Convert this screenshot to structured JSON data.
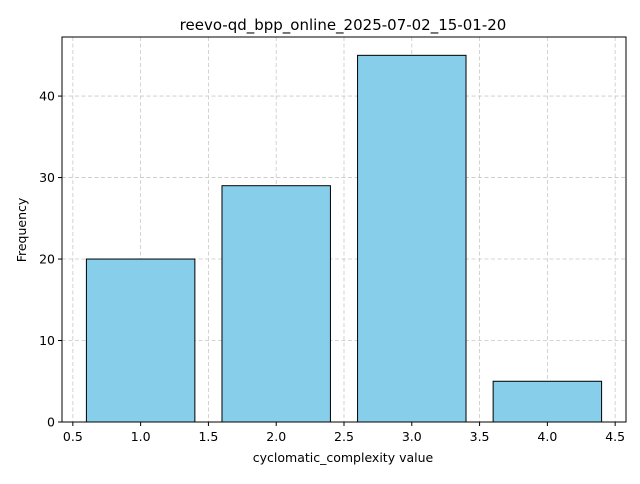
{
  "chart_data": {
    "type": "bar",
    "title": "reevo-qd_bpp_online_2025-07-02_15-01-20",
    "xlabel": "cyclomatic_complexity value",
    "ylabel": "Frequency",
    "bars": [
      {
        "x": 1.0,
        "value": 20,
        "width": 0.8
      },
      {
        "x": 2.0,
        "value": 29,
        "width": 0.8
      },
      {
        "x": 3.0,
        "value": 45,
        "width": 0.8
      },
      {
        "x": 4.0,
        "value": 5,
        "width": 0.8
      }
    ],
    "xlim": [
      0.42,
      4.58
    ],
    "ylim": [
      0,
      47.25
    ],
    "xticks": [
      0.5,
      1.0,
      1.5,
      2.0,
      2.5,
      3.0,
      3.5,
      4.0,
      4.5
    ],
    "xtick_labels": [
      "0.5",
      "1.0",
      "1.5",
      "2.0",
      "2.5",
      "3.0",
      "3.5",
      "4.0",
      "4.5"
    ],
    "yticks": [
      0,
      10,
      20,
      30,
      40
    ],
    "ytick_labels": [
      "0",
      "10",
      "20",
      "30",
      "40"
    ],
    "grid": true,
    "colors": {
      "bar_fill": "#87ceeb",
      "bar_edge": "#000000",
      "grid": "#c8c8c8"
    }
  }
}
